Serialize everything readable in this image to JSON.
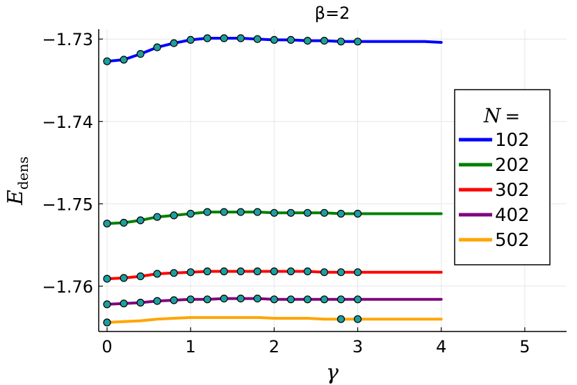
{
  "chart_data": {
    "type": "line",
    "title": "β=2",
    "xlabel": "γ",
    "ylabel": "E",
    "ylabel_sub": "dens",
    "xlim": [
      -0.1,
      5.5
    ],
    "ylim": [
      -1.7655,
      -1.7288
    ],
    "xticks": [
      0,
      1,
      2,
      3,
      4,
      5
    ],
    "xtick_labels": [
      "0",
      "1",
      "2",
      "3",
      "4",
      "5"
    ],
    "yticks": [
      -1.73,
      -1.74,
      -1.75,
      -1.76
    ],
    "ytick_labels": [
      "−1.73",
      "−1.74",
      "−1.75",
      "−1.76"
    ],
    "grid": true,
    "legend": {
      "title": "N =",
      "title_var": "N",
      "title_op": "=",
      "position": "right"
    },
    "marker_color": "#1f9e9e",
    "series": [
      {
        "name": "102",
        "color": "#0000ff",
        "x": [
          0,
          0.2,
          0.4,
          0.6,
          0.8,
          1.0,
          1.2,
          1.4,
          1.6,
          1.8,
          2.0,
          2.2,
          2.4,
          2.6,
          2.8,
          3.0,
          3.2,
          3.4,
          3.6,
          3.8,
          4.0
        ],
        "y": [
          -1.7327,
          -1.7325,
          -1.7318,
          -1.731,
          -1.7305,
          -1.7301,
          -1.7299,
          -1.7299,
          -1.7299,
          -1.73,
          -1.7301,
          -1.7301,
          -1.7302,
          -1.7302,
          -1.7303,
          -1.7303,
          -1.7303,
          -1.7303,
          -1.7303,
          -1.7303,
          -1.7304
        ],
        "markers_x": [
          0,
          0.2,
          0.4,
          0.6,
          0.8,
          1.0,
          1.2,
          1.4,
          1.6,
          1.8,
          2.0,
          2.2,
          2.4,
          2.6,
          2.8,
          3.0
        ],
        "markers_y": [
          -1.7327,
          -1.7325,
          -1.7318,
          -1.731,
          -1.7305,
          -1.7301,
          -1.7299,
          -1.7299,
          -1.7299,
          -1.73,
          -1.7301,
          -1.7301,
          -1.7302,
          -1.7302,
          -1.7303,
          -1.7303
        ]
      },
      {
        "name": "202",
        "color": "#008000",
        "x": [
          0,
          0.2,
          0.4,
          0.6,
          0.8,
          1.0,
          1.2,
          1.4,
          1.6,
          1.8,
          2.0,
          2.2,
          2.4,
          2.6,
          2.8,
          3.0,
          3.2,
          3.4,
          3.6,
          3.8,
          4.0
        ],
        "y": [
          -1.7524,
          -1.7523,
          -1.752,
          -1.7516,
          -1.7514,
          -1.7512,
          -1.751,
          -1.751,
          -1.751,
          -1.751,
          -1.7511,
          -1.7511,
          -1.7511,
          -1.7511,
          -1.7512,
          -1.7512,
          -1.7512,
          -1.7512,
          -1.7512,
          -1.7512,
          -1.7512
        ],
        "markers_x": [
          0,
          0.2,
          0.4,
          0.6,
          0.8,
          1.0,
          1.2,
          1.4,
          1.6,
          1.8,
          2.0,
          2.2,
          2.4,
          2.6,
          2.8,
          3.0
        ],
        "markers_y": [
          -1.7524,
          -1.7523,
          -1.752,
          -1.7516,
          -1.7514,
          -1.7512,
          -1.751,
          -1.751,
          -1.751,
          -1.751,
          -1.7511,
          -1.7511,
          -1.7511,
          -1.7511,
          -1.7512,
          -1.7512
        ]
      },
      {
        "name": "302",
        "color": "#ff0000",
        "x": [
          0,
          0.2,
          0.4,
          0.6,
          0.8,
          1.0,
          1.2,
          1.4,
          1.6,
          1.8,
          2.0,
          2.2,
          2.4,
          2.6,
          2.8,
          3.0,
          3.2,
          3.4,
          3.6,
          3.8,
          4.0
        ],
        "y": [
          -1.7591,
          -1.759,
          -1.7588,
          -1.7585,
          -1.7584,
          -1.7583,
          -1.7582,
          -1.7582,
          -1.7582,
          -1.7582,
          -1.7582,
          -1.7582,
          -1.7582,
          -1.7583,
          -1.7583,
          -1.7583,
          -1.7583,
          -1.7583,
          -1.7583,
          -1.7583,
          -1.7583
        ],
        "markers_x": [
          0,
          0.2,
          0.4,
          0.6,
          0.8,
          1.0,
          1.2,
          1.4,
          1.6,
          1.8,
          2.0,
          2.2,
          2.4,
          2.6,
          2.8,
          3.0
        ],
        "markers_y": [
          -1.7591,
          -1.759,
          -1.7588,
          -1.7585,
          -1.7584,
          -1.7583,
          -1.7582,
          -1.7582,
          -1.7582,
          -1.7582,
          -1.7582,
          -1.7582,
          -1.7582,
          -1.7583,
          -1.7583,
          -1.7583
        ]
      },
      {
        "name": "402",
        "color": "#800080",
        "x": [
          0,
          0.2,
          0.4,
          0.6,
          0.8,
          1.0,
          1.2,
          1.4,
          1.6,
          1.8,
          2.0,
          2.2,
          2.4,
          2.6,
          2.8,
          3.0,
          3.2,
          3.4,
          3.6,
          3.8,
          4.0
        ],
        "y": [
          -1.7622,
          -1.7621,
          -1.762,
          -1.7618,
          -1.7617,
          -1.7616,
          -1.7616,
          -1.7615,
          -1.7615,
          -1.7615,
          -1.7616,
          -1.7616,
          -1.7616,
          -1.7616,
          -1.7616,
          -1.7616,
          -1.7616,
          -1.7616,
          -1.7616,
          -1.7616,
          -1.7616
        ],
        "markers_x": [
          0,
          0.2,
          0.4,
          0.6,
          0.8,
          1.0,
          1.2,
          1.4,
          1.6,
          1.8,
          2.0,
          2.2,
          2.4,
          2.6,
          2.8,
          3.0
        ],
        "markers_y": [
          -1.7622,
          -1.7621,
          -1.762,
          -1.7618,
          -1.7617,
          -1.7616,
          -1.7616,
          -1.7615,
          -1.7615,
          -1.7615,
          -1.7616,
          -1.7616,
          -1.7616,
          -1.7616,
          -1.7616,
          -1.7616
        ]
      },
      {
        "name": "502",
        "color": "#ffa500",
        "x": [
          0,
          0.2,
          0.4,
          0.6,
          0.8,
          1.0,
          1.2,
          1.4,
          1.6,
          1.8,
          2.0,
          2.2,
          2.4,
          2.6,
          2.8,
          3.0,
          3.2,
          3.4,
          3.6,
          3.8,
          4.0
        ],
        "y": [
          -1.7644,
          -1.7643,
          -1.7642,
          -1.764,
          -1.7639,
          -1.7638,
          -1.7638,
          -1.7638,
          -1.7638,
          -1.7638,
          -1.7639,
          -1.7639,
          -1.7639,
          -1.764,
          -1.764,
          -1.764,
          -1.764,
          -1.764,
          -1.764,
          -1.764,
          -1.764
        ],
        "markers_x": [
          0,
          2.8,
          3.0
        ],
        "markers_y": [
          -1.7644,
          -1.764,
          -1.764
        ]
      }
    ]
  }
}
